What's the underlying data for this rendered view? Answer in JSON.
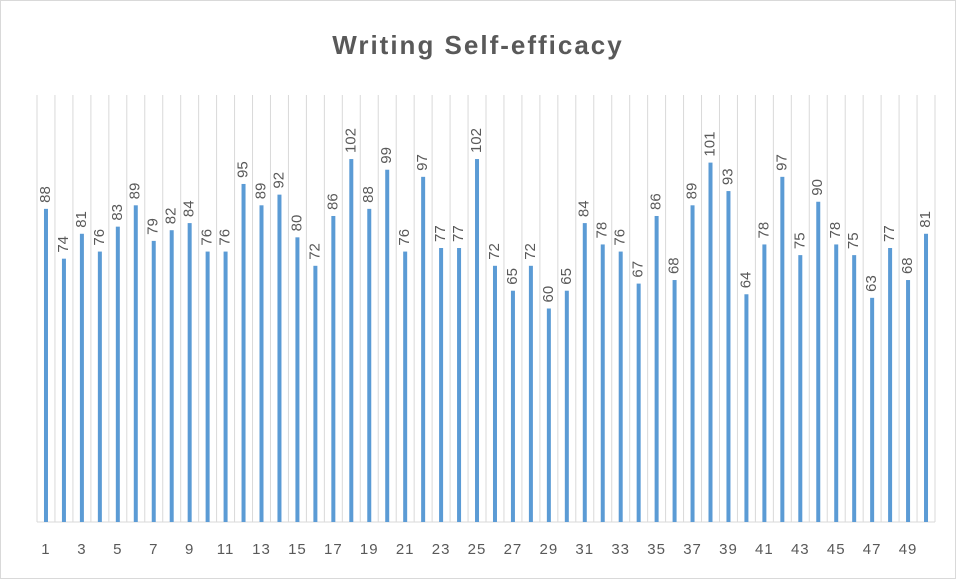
{
  "chart_data": {
    "type": "bar",
    "title": "Writing Self-efficacy",
    "categories": [
      1,
      null,
      3,
      null,
      5,
      null,
      7,
      null,
      9,
      null,
      11,
      null,
      13,
      null,
      15,
      null,
      17,
      null,
      19,
      null,
      21,
      null,
      23,
      null,
      25,
      null,
      27,
      null,
      29,
      null,
      31,
      null,
      33,
      null,
      35,
      null,
      37,
      null,
      39,
      null,
      41,
      null,
      43,
      null,
      45,
      null,
      47,
      null,
      49,
      null
    ],
    "values": [
      88,
      74,
      81,
      76,
      83,
      89,
      79,
      82,
      84,
      76,
      76,
      95,
      89,
      92,
      80,
      72,
      86,
      102,
      88,
      99,
      76,
      97,
      77,
      77,
      102,
      72,
      65,
      72,
      60,
      65,
      84,
      78,
      76,
      67,
      86,
      68,
      89,
      101,
      93,
      64,
      78,
      97,
      75,
      90,
      78,
      75,
      63,
      77,
      68,
      81
    ],
    "color": "#5b9bd5",
    "ylim": [
      0,
      120
    ],
    "grid": true
  }
}
